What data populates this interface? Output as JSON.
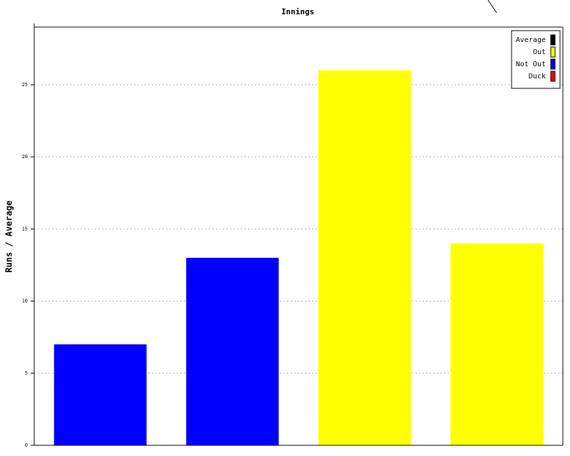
{
  "chart_data": {
    "type": "bar",
    "title": "Innings",
    "y_label": "Runs / Average",
    "categories": [
      null,
      null,
      null,
      null
    ],
    "series": [
      {
        "name": "Average",
        "color": "#000000",
        "values": [
          null,
          null,
          null,
          null
        ]
      },
      {
        "name": "Out",
        "color": "#ffff00",
        "values": [
          null,
          null,
          26,
          14
        ]
      },
      {
        "name": "Not Out",
        "color": "#0000ff",
        "values": [
          7,
          13,
          null,
          null
        ]
      },
      {
        "name": "Duck",
        "color": "#ff0000",
        "values": [
          null,
          null,
          null,
          null
        ]
      }
    ],
    "ylim": [
      0,
      29
    ],
    "yticks": [
      0,
      5,
      10,
      15,
      20,
      25
    ],
    "grid": true,
    "legend": "upper right"
  }
}
